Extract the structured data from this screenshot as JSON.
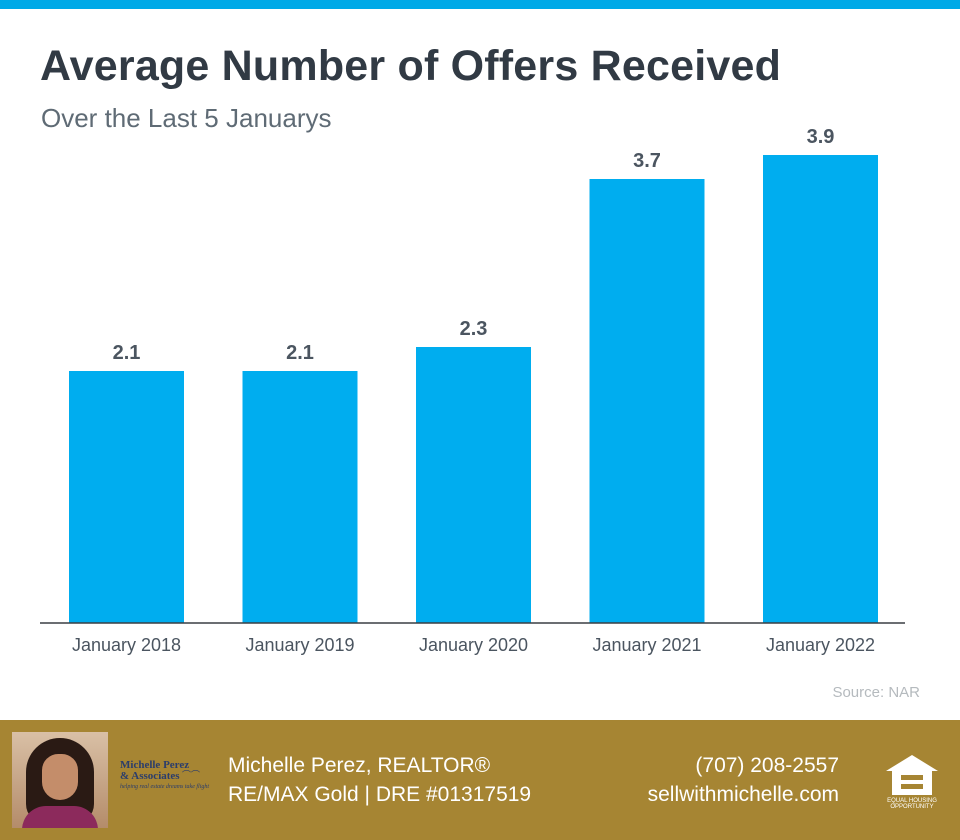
{
  "header": {
    "title": "Average Number of Offers Received",
    "subtitle": "Over the Last 5 Januarys"
  },
  "chart_data": {
    "type": "bar",
    "title": "Average Number of Offers Received",
    "subtitle": "Over the Last 5 Januarys",
    "categories": [
      "January 2018",
      "January 2019",
      "January 2020",
      "January 2021",
      "January 2022"
    ],
    "values": [
      2.1,
      2.1,
      2.3,
      3.7,
      3.9
    ],
    "value_labels": [
      "2.1",
      "2.1",
      "2.3",
      "3.7",
      "3.9"
    ],
    "xlabel": "",
    "ylabel": "",
    "ylim": [
      0,
      4.0
    ],
    "grid": false,
    "legend": "none",
    "bar_color": "#00adef"
  },
  "source": "Source: NAR",
  "footer": {
    "agent_name": "Michelle Perez, REALTOR®",
    "agent_company": "RE/MAX Gold | DRE #01317519",
    "phone": "(707) 208-2557",
    "website": "sellwithmichelle.com",
    "logo_name_line1": "Michelle Perez",
    "logo_name_line2": "& Associates",
    "logo_tagline": "helping real estate dreams take flight",
    "eho_line1": "EQUAL HOUSING",
    "eho_line2": "OPPORTUNITY",
    "background_color": "#a68533"
  },
  "colors": {
    "accent": "#00a9e7",
    "title": "#313a44",
    "text": "#4b5560"
  }
}
